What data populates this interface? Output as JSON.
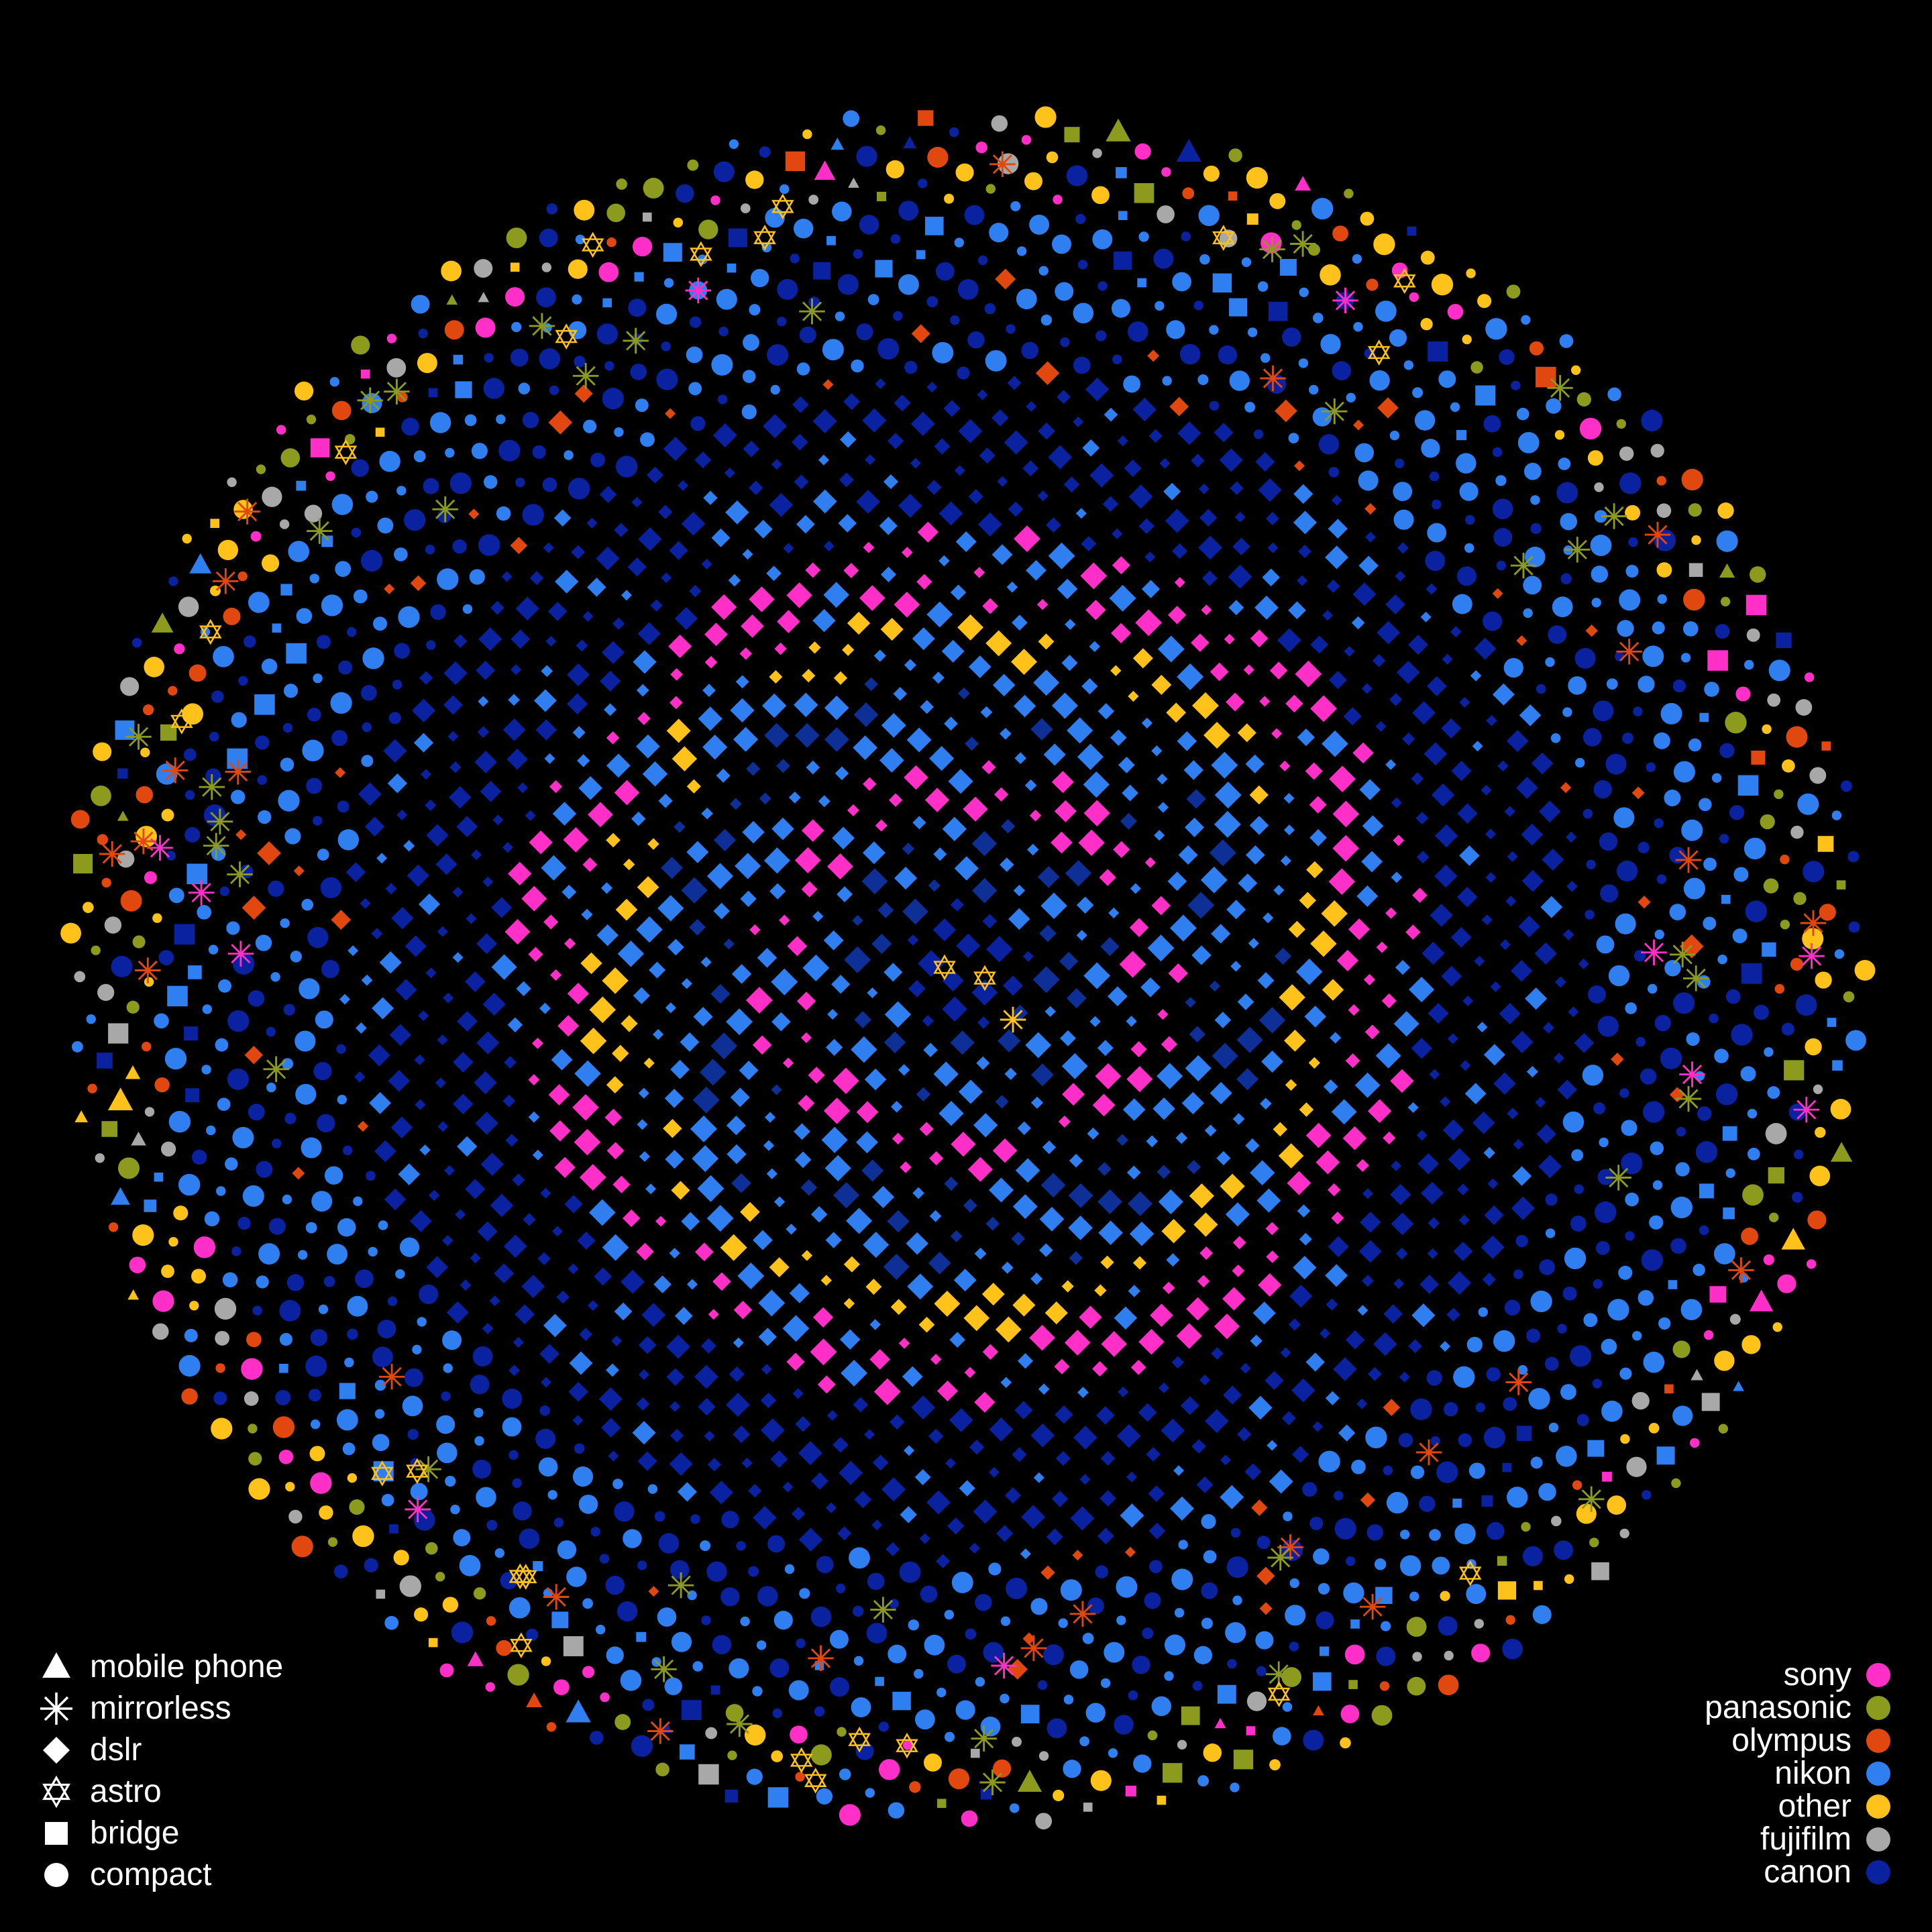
{
  "chart_data": {
    "type": "scatter",
    "title": "",
    "layout": "spiral / phyllotaxis of camera models, one mark per model",
    "background_color": "#000000",
    "shape_legend": [
      {
        "key": "mobile-phone",
        "label": "mobile phone",
        "shape": "triangle"
      },
      {
        "key": "mirrorless",
        "label": "mirrorless",
        "shape": "asterisk"
      },
      {
        "key": "dslr",
        "label": "dslr",
        "shape": "diamond"
      },
      {
        "key": "astro",
        "label": "astro",
        "shape": "star-of-david"
      },
      {
        "key": "bridge",
        "label": "bridge",
        "shape": "square"
      },
      {
        "key": "compact",
        "label": "compact",
        "shape": "circle"
      }
    ],
    "color_legend": [
      {
        "key": "sony",
        "label": "sony",
        "color": "#ff2fc8"
      },
      {
        "key": "panasonic",
        "label": "panasonic",
        "color": "#8c9a1e"
      },
      {
        "key": "olympus",
        "label": "olympus",
        "color": "#e0480f"
      },
      {
        "key": "nikon",
        "label": "nikon",
        "color": "#2f7ff0"
      },
      {
        "key": "other",
        "label": "other",
        "color": "#ffc21a"
      },
      {
        "key": "fujifilm",
        "label": "fujifilm",
        "color": "#a8a8a8"
      },
      {
        "key": "canon",
        "label": "canon",
        "color": "#0a22a0"
      }
    ],
    "rings": [
      {
        "from": 0,
        "to": 60,
        "type": "dslr",
        "brand": "canon"
      },
      {
        "from": 60,
        "to": 140,
        "type": "dslr",
        "brand": "nikon"
      },
      {
        "from": 140,
        "to": 190,
        "type": "dslr",
        "brand": "sony"
      },
      {
        "from": 190,
        "to": 280,
        "type": "dslr",
        "brand": "nikon"
      },
      {
        "from": 280,
        "to": 330,
        "type": "dslr",
        "brand": "other"
      },
      {
        "from": 330,
        "to": 400,
        "type": "dslr",
        "brand": "sony"
      },
      {
        "from": 400,
        "to": 540,
        "type": "dslr",
        "brand": "canon"
      },
      {
        "from": 540,
        "to": 640,
        "type": "compact",
        "brand": "canon"
      },
      {
        "from": 640,
        "to": 700,
        "type": "compact",
        "brand": "nikon"
      },
      {
        "from": 700,
        "to": 780,
        "type": "compact",
        "brand": "mixed"
      }
    ],
    "special_marks": [
      {
        "type": "astro",
        "brand": "other",
        "near": "center"
      },
      {
        "type": "astro",
        "brand": "other",
        "near": "center"
      },
      {
        "type": "mirrorless",
        "brand": "other",
        "near": "center"
      }
    ]
  }
}
